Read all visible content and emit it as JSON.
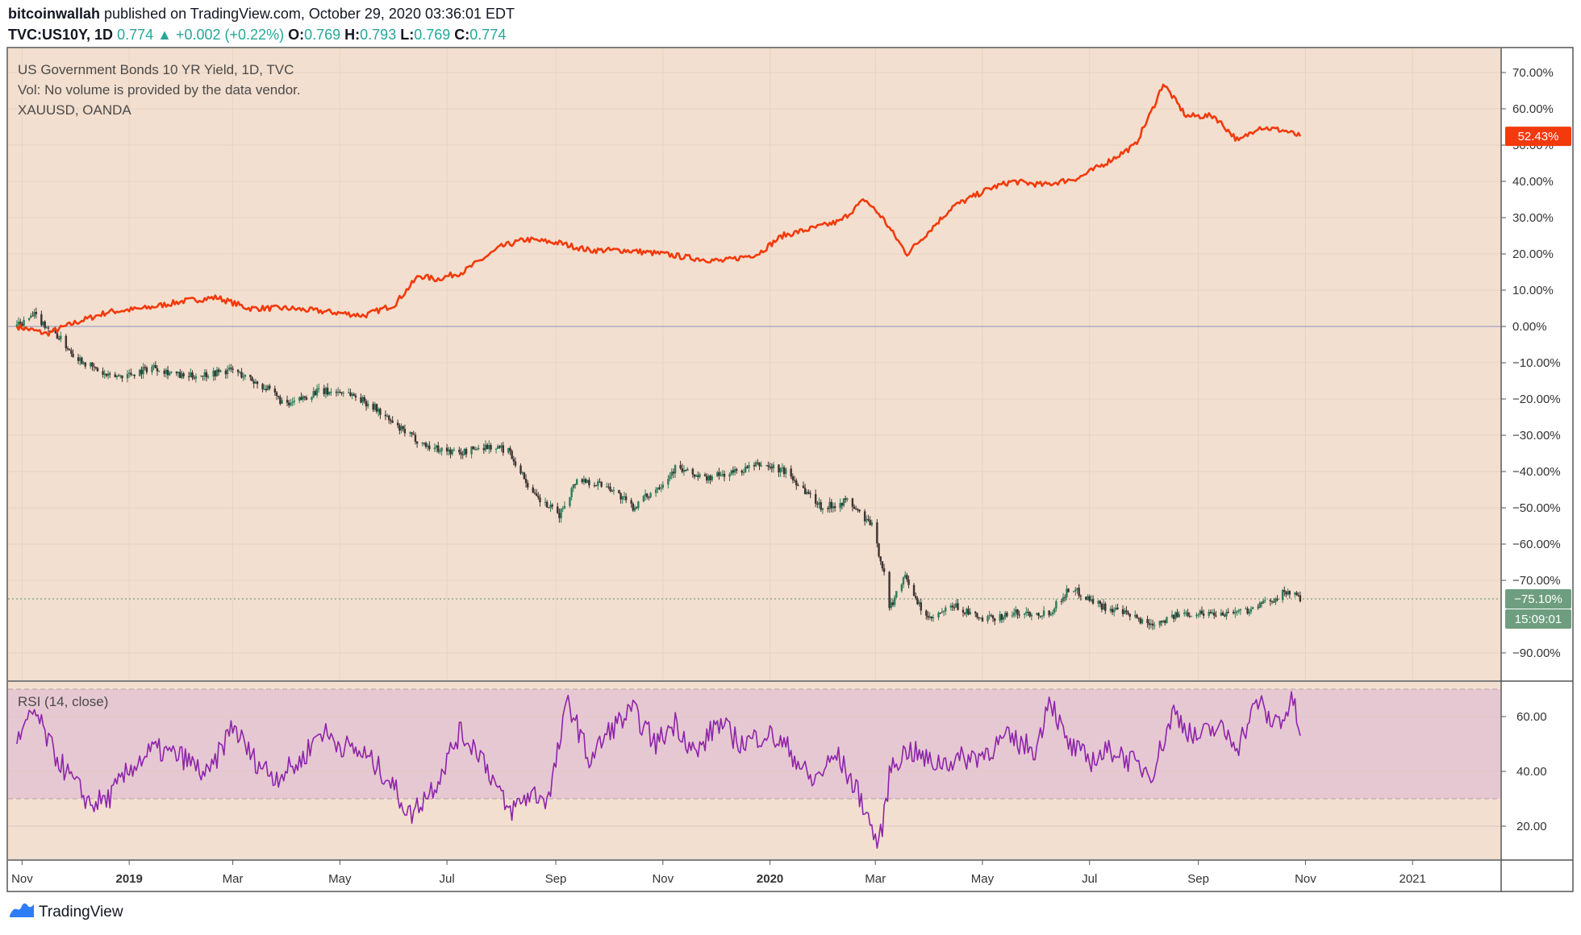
{
  "header": {
    "author": "bitcoinwallah",
    "published": "published on TradingView.com, October 29, 2020 03:36:01 EDT",
    "symbol": "TVC:US10Y, 1D",
    "last": "0.774",
    "change": "+0.002 (+0.22%)",
    "o_label": "O:",
    "o_value": "0.769",
    "h_label": "H:",
    "h_value": "0.793",
    "l_label": "L:",
    "l_value": "0.769",
    "c_label": "C:",
    "c_value": "0.774"
  },
  "legend": {
    "line1": "US Government Bonds 10 YR Yield, 1D, TVC",
    "line2": "Vol: No volume is provided by the data vendor.",
    "line3": "XAUUSD, OANDA"
  },
  "badges": {
    "xau_last": "52.43%",
    "us10y_last": "−75.10%",
    "countdown": "15:09:01"
  },
  "rsi_label": "RSI (14, close)",
  "footer": {
    "brand": "TradingView"
  },
  "colors": {
    "background": "#f3dfcf",
    "xau_line": "#f23a0c",
    "candle_up": "#2e7d5b",
    "candle_down": "#3d3232",
    "rsi_line": "#8e24aa",
    "rsi_band": "#e6c8d3",
    "badge_green": "#6e9e7f",
    "badge_red": "#f23a0c"
  },
  "chart_data": [
    {
      "type": "line",
      "ylabel": "",
      "ylim": [
        -100,
        70
      ],
      "y_ticks": [
        "70.00%",
        "60.00%",
        "50.00%",
        "40.00%",
        "30.00%",
        "20.00%",
        "10.00%",
        "0.00%",
        "−10.00%",
        "−20.00%",
        "−30.00%",
        "−40.00%",
        "−50.00%",
        "−60.00%",
        "−70.00%",
        "−90.00%"
      ],
      "y_tick_values": [
        70,
        60,
        50,
        40,
        30,
        20,
        10,
        0,
        -10,
        -20,
        -30,
        -40,
        -50,
        -60,
        -70,
        -90
      ],
      "x_ticks": [
        "Nov",
        "2019",
        "Mar",
        "May",
        "Jul",
        "Sep",
        "Nov",
        "2020",
        "Mar",
        "May",
        "Jul",
        "Sep",
        "Nov",
        "2021"
      ],
      "x_tick_bold": [
        false,
        true,
        false,
        false,
        false,
        false,
        false,
        true,
        false,
        false,
        false,
        false,
        false,
        false
      ],
      "x_tick_values": [
        "2018-11-01",
        "2019-01-01",
        "2019-03-01",
        "2019-05-01",
        "2019-07-01",
        "2019-09-01",
        "2019-11-01",
        "2020-01-01",
        "2020-03-01",
        "2020-05-01",
        "2020-07-01",
        "2020-09-01",
        "2020-11-01",
        "2021-01-01"
      ],
      "series": [
        {
          "name": "XAUUSD, OANDA",
          "style": "line",
          "x": [
            "2018-10-29",
            "2018-11-15",
            "2018-12-01",
            "2018-12-20",
            "2019-01-10",
            "2019-02-01",
            "2019-02-20",
            "2019-03-10",
            "2019-04-01",
            "2019-04-25",
            "2019-05-15",
            "2019-06-01",
            "2019-06-15",
            "2019-06-25",
            "2019-07-10",
            "2019-08-01",
            "2019-08-15",
            "2019-09-03",
            "2019-09-20",
            "2019-10-10",
            "2019-11-01",
            "2019-11-15",
            "2019-12-05",
            "2019-12-25",
            "2020-01-08",
            "2020-01-25",
            "2020-02-10",
            "2020-02-24",
            "2020-03-05",
            "2020-03-19",
            "2020-03-25",
            "2020-04-14",
            "2020-05-05",
            "2020-05-18",
            "2020-06-05",
            "2020-06-25",
            "2020-07-10",
            "2020-07-27",
            "2020-08-06",
            "2020-08-12",
            "2020-08-25",
            "2020-09-10",
            "2020-09-24",
            "2020-10-05",
            "2020-10-20",
            "2020-10-29"
          ],
          "values": [
            0,
            -2,
            1,
            4,
            5,
            7,
            8,
            5,
            5,
            4,
            3,
            6,
            14,
            13,
            15,
            22,
            24,
            23,
            21,
            21,
            20,
            19,
            18,
            20,
            25,
            27,
            29,
            35,
            30,
            20,
            23,
            33,
            38,
            40,
            39,
            41,
            45,
            50,
            60,
            67,
            58,
            58,
            51,
            55,
            54,
            52.43
          ]
        },
        {
          "name": "US Government Bonds 10 YR Yield, 1D, TVC",
          "style": "candles",
          "x": [
            "2018-10-29",
            "2018-11-08",
            "2018-11-20",
            "2018-12-01",
            "2018-12-10",
            "2018-12-20",
            "2019-01-03",
            "2019-01-15",
            "2019-02-01",
            "2019-02-15",
            "2019-03-01",
            "2019-03-20",
            "2019-04-01",
            "2019-04-17",
            "2019-05-05",
            "2019-05-20",
            "2019-06-03",
            "2019-06-20",
            "2019-07-08",
            "2019-07-22",
            "2019-08-05",
            "2019-08-20",
            "2019-09-03",
            "2019-09-13",
            "2019-10-01",
            "2019-10-15",
            "2019-11-01",
            "2019-11-08",
            "2019-11-25",
            "2019-12-13",
            "2019-12-27",
            "2020-01-10",
            "2020-01-31",
            "2020-02-14",
            "2020-02-28",
            "2020-03-06",
            "2020-03-09",
            "2020-03-18",
            "2020-03-23",
            "2020-04-01",
            "2020-04-15",
            "2020-05-01",
            "2020-05-20",
            "2020-06-08",
            "2020-06-20",
            "2020-07-08",
            "2020-07-25",
            "2020-08-04",
            "2020-08-25",
            "2020-09-15",
            "2020-10-01",
            "2020-10-10",
            "2020-10-22",
            "2020-10-29"
          ],
          "values": [
            0,
            3,
            -2,
            -8,
            -11,
            -14,
            -13,
            -11,
            -14,
            -13,
            -12,
            -17,
            -22,
            -18,
            -18,
            -22,
            -28,
            -33,
            -35,
            -33,
            -34,
            -47,
            -52,
            -42,
            -44,
            -50,
            -43,
            -39,
            -42,
            -40,
            -38,
            -40,
            -50,
            -48,
            -55,
            -68,
            -78,
            -68,
            -75,
            -81,
            -77,
            -81,
            -79,
            -79,
            -72,
            -77,
            -80,
            -82,
            -79,
            -79,
            -78,
            -76,
            -73,
            -75.1
          ]
        }
      ]
    },
    {
      "type": "line",
      "title": "RSI (14, close)",
      "ylim": [
        10,
        72
      ],
      "y_ticks": [
        "60.00",
        "40.00",
        "20.00"
      ],
      "y_tick_values": [
        60,
        40,
        20
      ],
      "band": [
        30,
        70
      ],
      "series": [
        {
          "name": "RSI (14, close)",
          "x": [
            "2018-10-29",
            "2018-11-08",
            "2018-11-18",
            "2018-11-28",
            "2018-12-10",
            "2018-12-20",
            "2019-01-03",
            "2019-01-15",
            "2019-02-01",
            "2019-02-15",
            "2019-03-01",
            "2019-03-12",
            "2019-03-25",
            "2019-04-08",
            "2019-04-20",
            "2019-05-01",
            "2019-05-15",
            "2019-05-28",
            "2019-06-10",
            "2019-06-25",
            "2019-07-08",
            "2019-07-20",
            "2019-08-05",
            "2019-08-18",
            "2019-08-28",
            "2019-09-08",
            "2019-09-20",
            "2019-10-03",
            "2019-10-15",
            "2019-10-28",
            "2019-11-08",
            "2019-11-20",
            "2019-12-02",
            "2019-12-16",
            "2019-12-30",
            "2020-01-12",
            "2020-01-25",
            "2020-02-08",
            "2020-02-22",
            "2020-03-03",
            "2020-03-10",
            "2020-03-20",
            "2020-04-02",
            "2020-04-15",
            "2020-04-30",
            "2020-05-15",
            "2020-06-01",
            "2020-06-08",
            "2020-06-18",
            "2020-07-01",
            "2020-07-15",
            "2020-07-28",
            "2020-08-06",
            "2020-08-18",
            "2020-08-30",
            "2020-09-12",
            "2020-09-24",
            "2020-10-05",
            "2020-10-12",
            "2020-10-20",
            "2020-10-25",
            "2020-10-29"
          ],
          "values": [
            50,
            62,
            48,
            38,
            28,
            30,
            42,
            48,
            45,
            38,
            57,
            45,
            38,
            43,
            55,
            50,
            46,
            38,
            24,
            36,
            54,
            47,
            25,
            32,
            30,
            66,
            44,
            56,
            62,
            50,
            58,
            46,
            58,
            50,
            54,
            48,
            36,
            46,
            30,
            12,
            42,
            48,
            43,
            44,
            46,
            52,
            48,
            68,
            50,
            44,
            48,
            42,
            40,
            62,
            52,
            56,
            50,
            66,
            58,
            60,
            66,
            53
          ]
        }
      ]
    }
  ]
}
